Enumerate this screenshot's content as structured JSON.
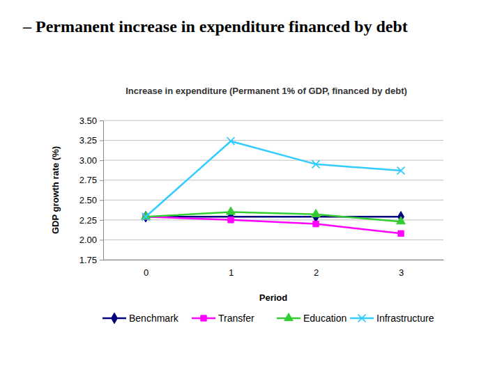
{
  "header": {
    "title": "– Permanent increase in expenditure financed by debt"
  },
  "chart_data": {
    "type": "line",
    "title": "Increase in expenditure (Permanent 1% of GDP, financed by debt)",
    "x_label": "Period",
    "y_label": "GDP growth rate (%)",
    "categories": [
      "0",
      "1",
      "2",
      "3"
    ],
    "series": [
      {
        "name": "Benchmark",
        "color": "#000080",
        "marker": "diamond",
        "values": [
          2.29,
          2.29,
          2.29,
          2.29
        ]
      },
      {
        "name": "Transfer",
        "color": "#ff00ff",
        "marker": "square",
        "values": [
          2.29,
          2.25,
          2.2,
          2.08
        ]
      },
      {
        "name": "Education",
        "color": "#33cc33",
        "marker": "triangle",
        "values": [
          2.29,
          2.35,
          2.32,
          2.23
        ]
      },
      {
        "name": "Infrastructure",
        "color": "#33ccff",
        "marker": "x",
        "values": [
          2.29,
          3.24,
          2.95,
          2.87
        ]
      }
    ],
    "ylim": [
      1.75,
      3.5
    ],
    "yticks": [
      1.75,
      {
        "value": 2,
        "label": "2.00"
      },
      2.25,
      {
        "value": 2.5,
        "label": "2.50"
      },
      2.75,
      {
        "value": 3,
        "label": "3.00"
      },
      3.25,
      {
        "value": 3.5,
        "label": "3.50"
      }
    ],
    "grid": true,
    "legend": "bottom"
  }
}
